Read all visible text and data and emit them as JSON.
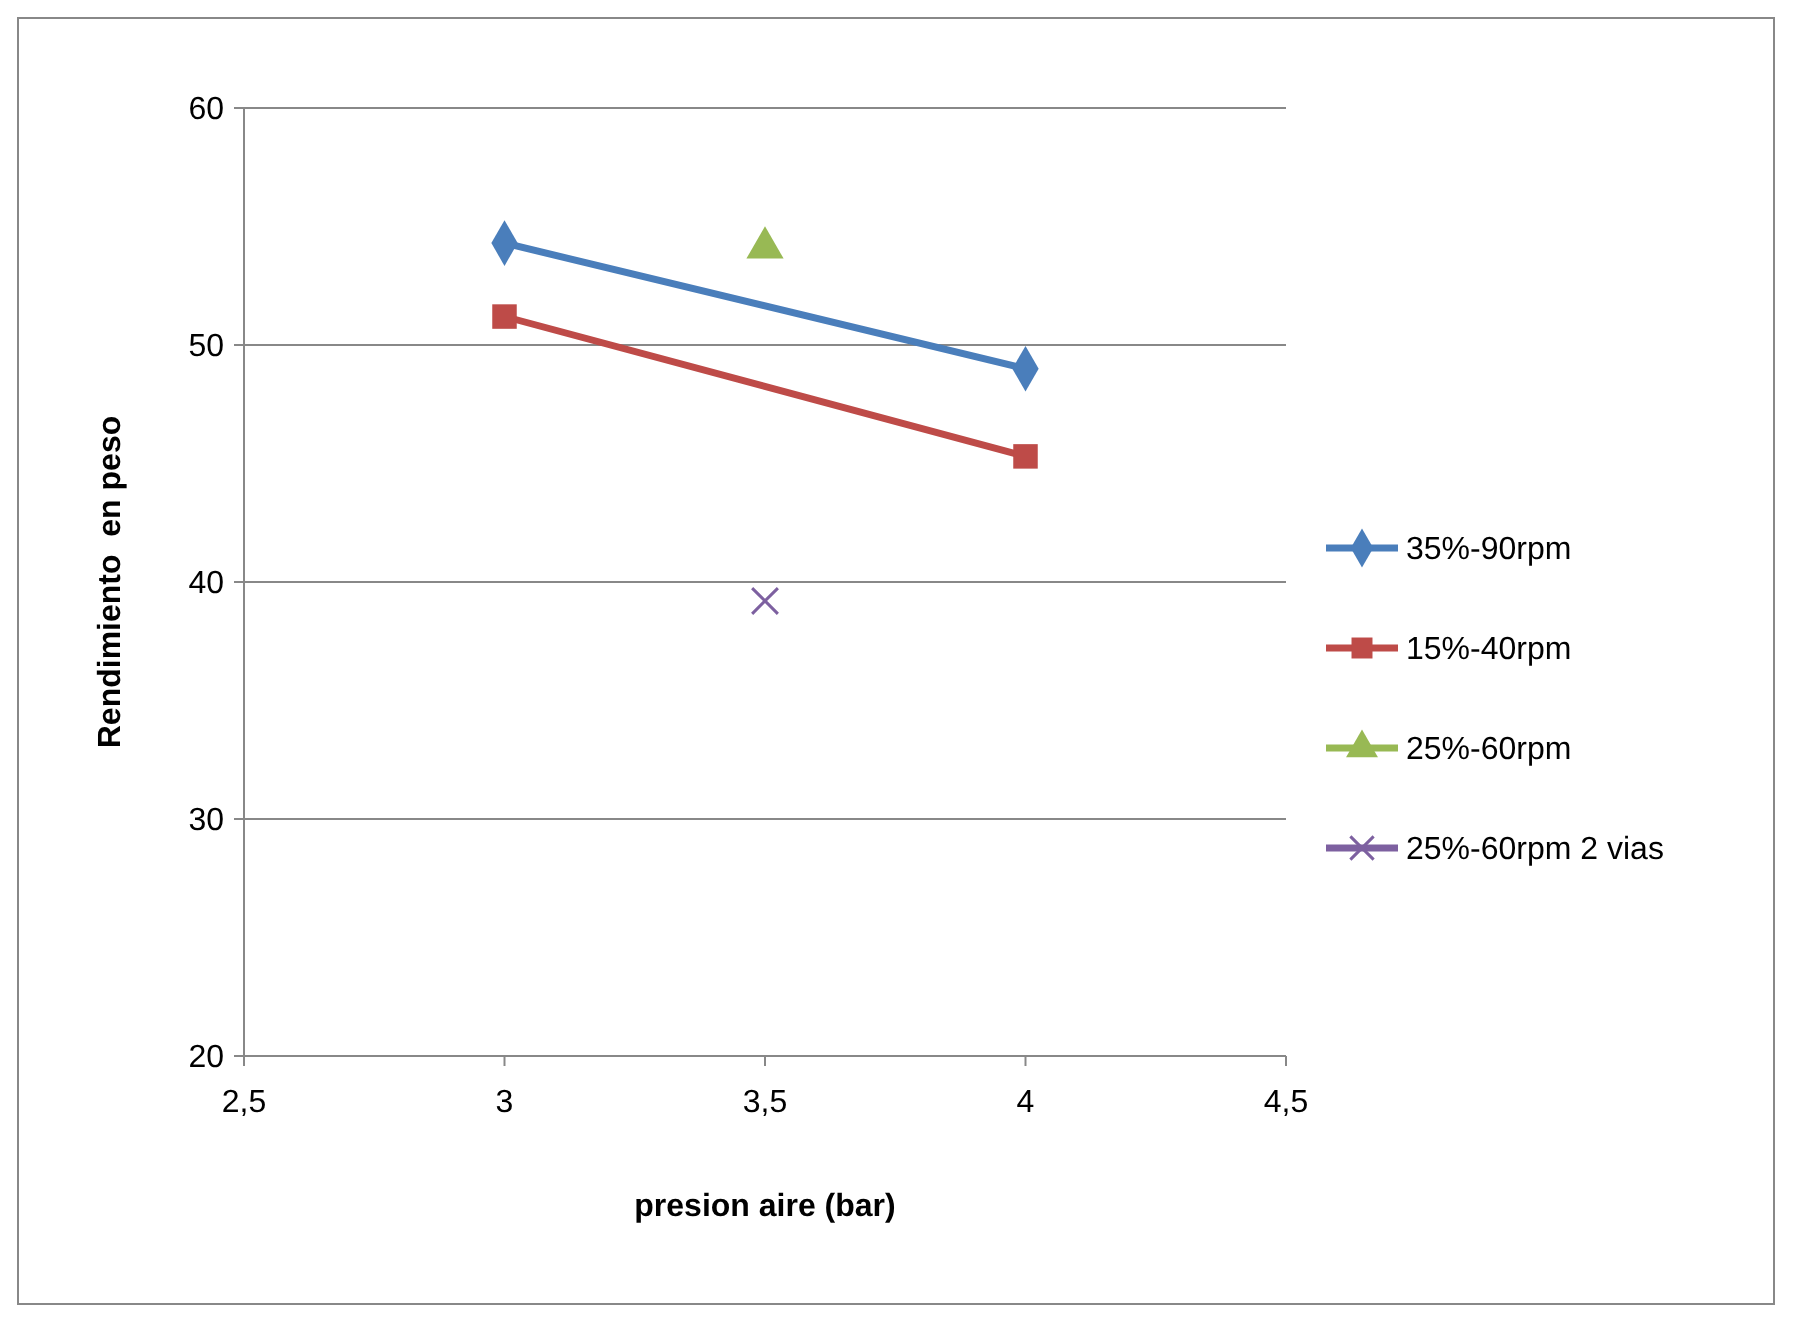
{
  "chart_data": {
    "type": "line",
    "xlabel": "presion aire (bar)",
    "ylabel": "Rendimiento  en peso",
    "xlim": [
      2.5,
      4.5
    ],
    "xticks": [
      {
        "value": 2.5,
        "label": "2,5"
      },
      3,
      {
        "value": 3.5,
        "label": "3,5"
      },
      4,
      {
        "value": 4.5,
        "label": "4,5"
      }
    ],
    "ylim": [
      20,
      60
    ],
    "yticks": [
      20,
      30,
      40,
      50,
      60
    ],
    "grid": "y",
    "legend": "right",
    "series": [
      {
        "name": "35%-90rpm",
        "color": "#4a7ebb",
        "marker": "diamond",
        "x": [
          3,
          4
        ],
        "values": [
          54.3,
          49.0
        ]
      },
      {
        "name": "15%-40rpm",
        "color": "#be4b48",
        "marker": "square",
        "x": [
          3,
          4
        ],
        "values": [
          51.2,
          45.3
        ]
      },
      {
        "name": "25%-60rpm",
        "color": "#98b954",
        "marker": "triangle",
        "x": [
          3.5
        ],
        "values": [
          54.1
        ]
      },
      {
        "name": "25%-60rpm 2 vias",
        "color": "#7d60a0",
        "marker": "cross",
        "x": [
          3.5
        ],
        "values": [
          39.2
        ]
      }
    ]
  }
}
